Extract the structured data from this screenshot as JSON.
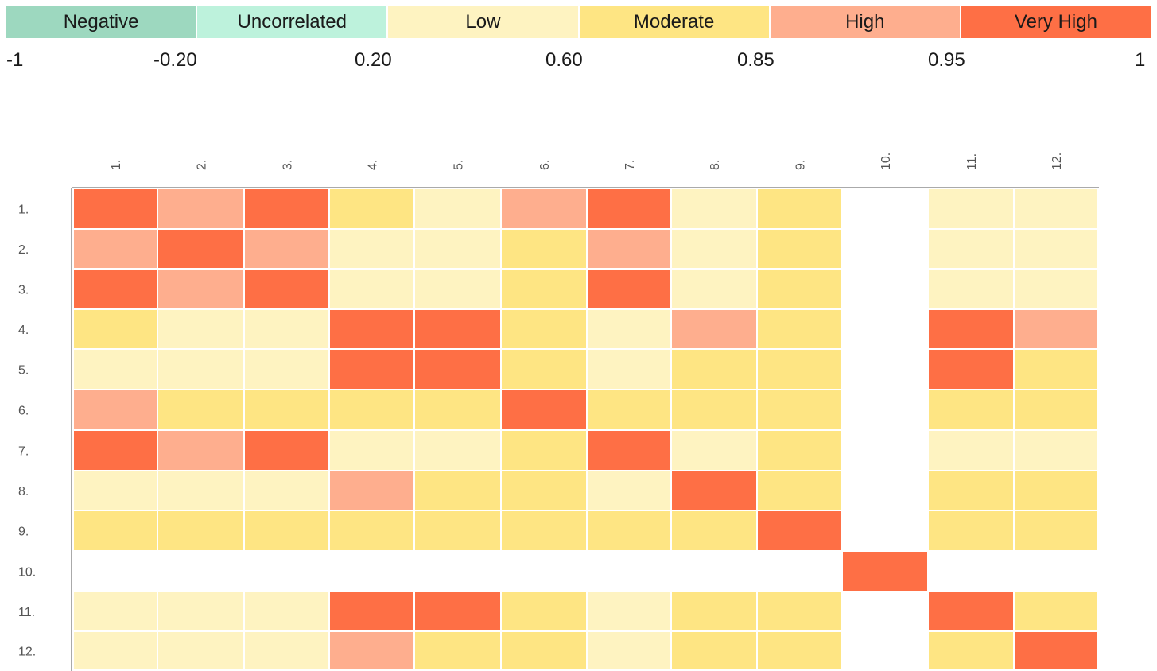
{
  "legend": {
    "segments": [
      {
        "label": "Negative",
        "color": "#9dd8bf"
      },
      {
        "label": "Uncorrelated",
        "color": "#bdf2dc"
      },
      {
        "label": "Low",
        "color": "#fef3c1"
      },
      {
        "label": "Moderate",
        "color": "#fee583"
      },
      {
        "label": "High",
        "color": "#feae8e"
      },
      {
        "label": "Very High",
        "color": "#fe6f45"
      }
    ],
    "ticks": [
      "-1",
      "-0.20",
      "0.20",
      "0.60",
      "0.85",
      "0.95",
      "1"
    ]
  },
  "chart_data": {
    "type": "heatmap",
    "title": "",
    "xlabel": "",
    "ylabel": "",
    "row_labels": [
      "1.",
      "2.",
      "3.",
      "4.",
      "5.",
      "6.",
      "7.",
      "8.",
      "9.",
      "10.",
      "11.",
      "12."
    ],
    "col_labels": [
      "1.",
      "2.",
      "3.",
      "4.",
      "5.",
      "6.",
      "7.",
      "8.",
      "9.",
      "10.",
      "11.",
      "12."
    ],
    "value_type": "correlation category",
    "categories": [
      "Negative",
      "Uncorrelated",
      "Low",
      "Moderate",
      "High",
      "Very High"
    ],
    "colors": {
      "Low": "#fef3c1",
      "Moderate": "#fee583",
      "High": "#feae8e",
      "Very High": "#fe6f45"
    },
    "matrix": [
      [
        "Very High",
        "High",
        "Very High",
        "Moderate",
        "Low",
        "High",
        "Very High",
        "Low",
        "Moderate",
        null,
        "Low",
        "Low"
      ],
      [
        "High",
        "Very High",
        "High",
        "Low",
        "Low",
        "Moderate",
        "High",
        "Low",
        "Moderate",
        null,
        "Low",
        "Low"
      ],
      [
        "Very High",
        "High",
        "Very High",
        "Low",
        "Low",
        "Moderate",
        "Very High",
        "Low",
        "Moderate",
        null,
        "Low",
        "Low"
      ],
      [
        "Moderate",
        "Low",
        "Low",
        "Very High",
        "Very High",
        "Moderate",
        "Low",
        "High",
        "Moderate",
        null,
        "Very High",
        "High"
      ],
      [
        "Low",
        "Low",
        "Low",
        "Very High",
        "Very High",
        "Moderate",
        "Low",
        "Moderate",
        "Moderate",
        null,
        "Very High",
        "Moderate"
      ],
      [
        "High",
        "Moderate",
        "Moderate",
        "Moderate",
        "Moderate",
        "Very High",
        "Moderate",
        "Moderate",
        "Moderate",
        null,
        "Moderate",
        "Moderate"
      ],
      [
        "Very High",
        "High",
        "Very High",
        "Low",
        "Low",
        "Moderate",
        "Very High",
        "Low",
        "Moderate",
        null,
        "Low",
        "Low"
      ],
      [
        "Low",
        "Low",
        "Low",
        "High",
        "Moderate",
        "Moderate",
        "Low",
        "Very High",
        "Moderate",
        null,
        "Moderate",
        "Moderate"
      ],
      [
        "Moderate",
        "Moderate",
        "Moderate",
        "Moderate",
        "Moderate",
        "Moderate",
        "Moderate",
        "Moderate",
        "Very High",
        null,
        "Moderate",
        "Moderate"
      ],
      [
        null,
        null,
        null,
        null,
        null,
        null,
        null,
        null,
        null,
        "Very High",
        null,
        null
      ],
      [
        "Low",
        "Low",
        "Low",
        "Very High",
        "Very High",
        "Moderate",
        "Low",
        "Moderate",
        "Moderate",
        null,
        "Very High",
        "Moderate"
      ],
      [
        "Low",
        "Low",
        "Low",
        "High",
        "Moderate",
        "Moderate",
        "Low",
        "Moderate",
        "Moderate",
        null,
        "Moderate",
        "Very High"
      ]
    ]
  }
}
